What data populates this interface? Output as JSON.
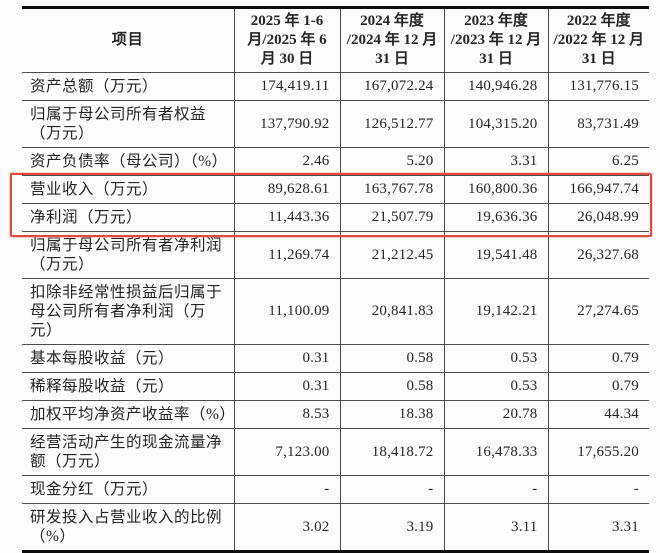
{
  "page": {
    "background": "#fcfcfc",
    "description": "Financial highlights table from a Chinese listing document"
  },
  "table": {
    "header": {
      "item": "项目",
      "periods": [
        "2025 年 1-6\n月/2025 年 6\n月 30 日",
        "2024 年度\n/2024 年 12 月\n31 日",
        "2023 年度\n/2023 年 12 月\n31 日",
        "2022 年度\n/2022 年 12 月\n31 日"
      ]
    },
    "rows": [
      {
        "label": "资产总额（万元）",
        "values": [
          "174,419.11",
          "167,072.24",
          "140,946.28",
          "131,776.15"
        ]
      },
      {
        "label": "归属于母公司所有者权益（万元）",
        "values": [
          "137,790.92",
          "126,512.77",
          "104,315.20",
          "83,731.49"
        ]
      },
      {
        "label": "资产负债率（母公司）（%）",
        "values": [
          "2.46",
          "5.20",
          "3.31",
          "6.25"
        ]
      },
      {
        "label": "营业收入（万元）",
        "values": [
          "89,628.61",
          "163,767.78",
          "160,800.36",
          "166,947.74"
        ]
      },
      {
        "label": "净利润（万元）",
        "values": [
          "11,443.36",
          "21,507.79",
          "19,636.36",
          "26,048.99"
        ]
      },
      {
        "label": "归属于母公司所有者净利润（万元）",
        "values": [
          "11,269.74",
          "21,212.45",
          "19,541.48",
          "26,327.68"
        ]
      },
      {
        "label": "扣除非经常性损益后归属于母公司所有者净利润（万元）",
        "values": [
          "11,100.09",
          "20,841.83",
          "19,142.21",
          "27,274.65"
        ]
      },
      {
        "label": "基本每股收益（元）",
        "values": [
          "0.31",
          "0.58",
          "0.53",
          "0.79"
        ]
      },
      {
        "label": "稀释每股收益（元）",
        "values": [
          "0.31",
          "0.58",
          "0.53",
          "0.79"
        ]
      },
      {
        "label": "加权平均净资产收益率（%）",
        "values": [
          "8.53",
          "18.38",
          "20.78",
          "44.34"
        ]
      },
      {
        "label": "经营活动产生的现金流量净额（万元）",
        "values": [
          "7,123.00",
          "18,418.72",
          "16,478.33",
          "17,655.20"
        ]
      },
      {
        "label": "现金分红（万元）",
        "values": [
          "-",
          "-",
          "-",
          "-"
        ]
      },
      {
        "label": "研发投入占营业收入的比例（%）",
        "values": [
          "3.02",
          "3.19",
          "3.11",
          "3.31"
        ]
      }
    ],
    "highlight": {
      "row_indexes": [
        3,
        4
      ],
      "color": "#dd4a3f"
    }
  }
}
